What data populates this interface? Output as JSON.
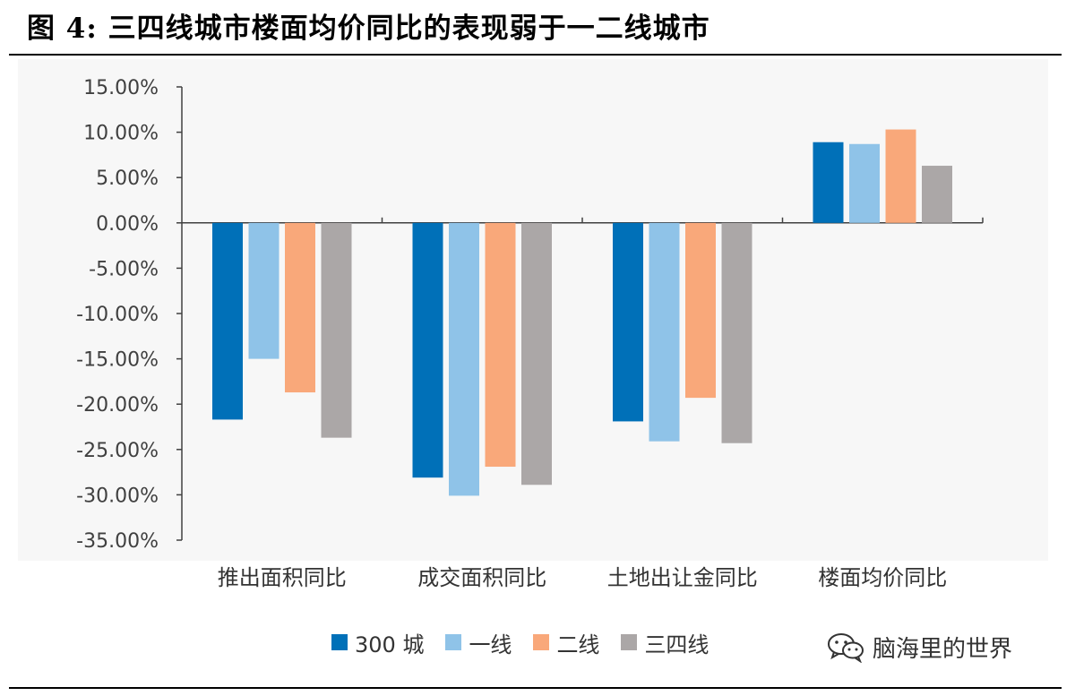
{
  "title": "图 4:  三四线城市楼面均价同比的表现弱于一二线城市",
  "watermark": {
    "text": "脑海里的世界",
    "icon": "wechat-icon"
  },
  "colors": {
    "series": [
      "#0070b8",
      "#8fc3e8",
      "#f9a87a",
      "#aba7a7"
    ],
    "axis": "#404040",
    "tick_text": "#404040",
    "rule": "#000000"
  },
  "chart_data": {
    "type": "bar",
    "categories": [
      "推出面积同比",
      "成交面积同比",
      "土地出让金同比",
      "楼面均价同比"
    ],
    "series": [
      {
        "name": "300 城",
        "values": [
          -21.7,
          -28.1,
          -21.9,
          8.9
        ]
      },
      {
        "name": "一线",
        "values": [
          -15.0,
          -30.1,
          -24.1,
          8.7
        ]
      },
      {
        "name": "二线",
        "values": [
          -18.7,
          -26.9,
          -19.3,
          10.3
        ]
      },
      {
        "name": "三四线",
        "values": [
          -23.7,
          -28.9,
          -24.3,
          6.3
        ]
      }
    ],
    "yticks": [
      15,
      10,
      5,
      0,
      -5,
      -10,
      -15,
      -20,
      -25,
      -30,
      -35
    ],
    "ytick_labels": [
      "15.00%",
      "10.00%",
      "5.00%",
      "0.00%",
      "-5.00%",
      "-10.00%",
      "-15.00%",
      "-20.00%",
      "-25.00%",
      "-30.00%",
      "-35.00%"
    ],
    "ylim": [
      -35,
      15
    ],
    "grid": false,
    "legend_position": "bottom"
  }
}
